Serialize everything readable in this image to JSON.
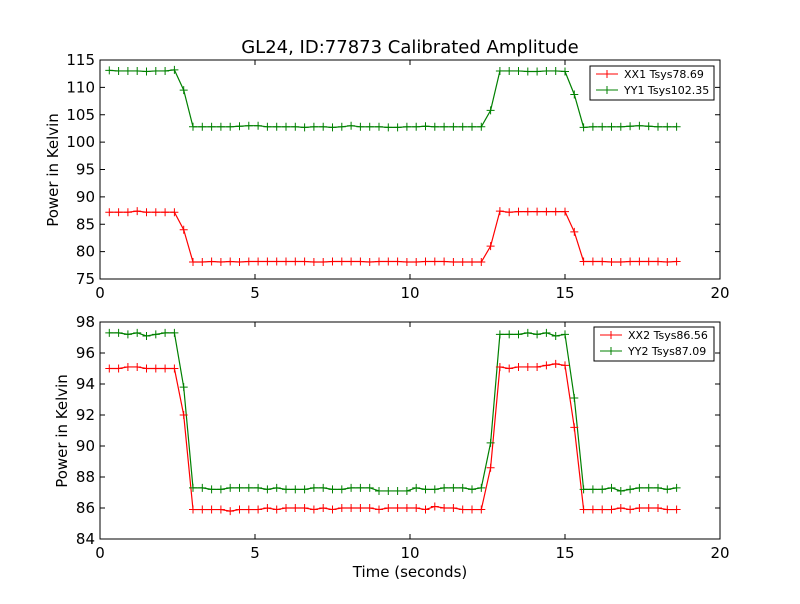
{
  "title": "GL24, ID:77873 Calibrated Amplitude",
  "colors": {
    "xx": "#ff0000",
    "yy": "#008000",
    "axis": "#000000",
    "background": "#ffffff"
  },
  "chart_data": [
    {
      "type": "line",
      "title": "GL24, ID:77873 Calibrated Amplitude",
      "xlabel": "",
      "ylabel": "Power in Kelvin",
      "xlim": [
        0,
        20
      ],
      "ylim": [
        75,
        115
      ],
      "xticks": [
        "0",
        "5",
        "10",
        "15",
        "20"
      ],
      "yticks": [
        "75",
        "80",
        "85",
        "90",
        "95",
        "100",
        "105",
        "110",
        "115"
      ],
      "grid": false,
      "legend_position": "top-right",
      "x": [
        0.3,
        0.6,
        0.9,
        1.2,
        1.5,
        1.8,
        2.1,
        2.4,
        2.7,
        3.0,
        3.3,
        3.6,
        3.9,
        4.2,
        4.5,
        4.8,
        5.1,
        5.4,
        5.7,
        6.0,
        6.3,
        6.6,
        6.9,
        7.2,
        7.5,
        7.8,
        8.1,
        8.4,
        8.7,
        9.0,
        9.3,
        9.6,
        9.9,
        10.2,
        10.5,
        10.8,
        11.1,
        11.4,
        11.7,
        12.0,
        12.3,
        12.6,
        12.9,
        13.2,
        13.5,
        13.8,
        14.1,
        14.4,
        14.7,
        15.0,
        15.3,
        15.6,
        15.9,
        16.2,
        16.5,
        16.8,
        17.1,
        17.4,
        17.7,
        18.0,
        18.3,
        18.6
      ],
      "series": [
        {
          "name": "XX1 Tsys78.69",
          "color": "#ff0000",
          "values": [
            87.2,
            87.2,
            87.2,
            87.4,
            87.2,
            87.2,
            87.2,
            87.2,
            84.0,
            78.1,
            78.1,
            78.2,
            78.1,
            78.2,
            78.1,
            78.2,
            78.2,
            78.2,
            78.2,
            78.2,
            78.2,
            78.2,
            78.1,
            78.1,
            78.2,
            78.2,
            78.2,
            78.2,
            78.1,
            78.2,
            78.2,
            78.2,
            78.1,
            78.1,
            78.2,
            78.2,
            78.2,
            78.1,
            78.1,
            78.1,
            78.1,
            81.0,
            87.4,
            87.2,
            87.3,
            87.3,
            87.3,
            87.3,
            87.3,
            87.3,
            83.6,
            78.2,
            78.2,
            78.2,
            78.1,
            78.1,
            78.2,
            78.2,
            78.2,
            78.2,
            78.1,
            78.2
          ]
        },
        {
          "name": "YY1 Tsys102.35",
          "color": "#008000",
          "values": [
            113.1,
            113.0,
            113.0,
            113.0,
            112.9,
            113.0,
            113.0,
            113.2,
            109.5,
            102.8,
            102.8,
            102.8,
            102.8,
            102.8,
            102.9,
            103.0,
            103.0,
            102.8,
            102.8,
            102.8,
            102.8,
            102.7,
            102.8,
            102.8,
            102.7,
            102.8,
            103.0,
            102.8,
            102.8,
            102.8,
            102.7,
            102.7,
            102.8,
            102.8,
            102.9,
            102.8,
            102.8,
            102.8,
            102.8,
            102.8,
            102.8,
            105.8,
            113.0,
            113.0,
            113.0,
            112.9,
            112.9,
            113.0,
            113.0,
            112.9,
            108.7,
            102.7,
            102.8,
            102.8,
            102.8,
            102.8,
            102.9,
            103.0,
            102.9,
            102.8,
            102.8,
            102.8
          ]
        }
      ]
    },
    {
      "type": "line",
      "title": "",
      "xlabel": "Time (seconds)",
      "ylabel": "Power in Kelvin",
      "xlim": [
        0,
        20
      ],
      "ylim": [
        84,
        98
      ],
      "xticks": [
        "0",
        "5",
        "10",
        "15",
        "20"
      ],
      "yticks": [
        "84",
        "86",
        "88",
        "90",
        "92",
        "94",
        "96",
        "98"
      ],
      "grid": false,
      "legend_position": "top-right",
      "x": [
        0.3,
        0.6,
        0.9,
        1.2,
        1.5,
        1.8,
        2.1,
        2.4,
        2.7,
        3.0,
        3.3,
        3.6,
        3.9,
        4.2,
        4.5,
        4.8,
        5.1,
        5.4,
        5.7,
        6.0,
        6.3,
        6.6,
        6.9,
        7.2,
        7.5,
        7.8,
        8.1,
        8.4,
        8.7,
        9.0,
        9.3,
        9.6,
        9.9,
        10.2,
        10.5,
        10.8,
        11.1,
        11.4,
        11.7,
        12.0,
        12.3,
        12.6,
        12.9,
        13.2,
        13.5,
        13.8,
        14.1,
        14.4,
        14.7,
        15.0,
        15.3,
        15.6,
        15.9,
        16.2,
        16.5,
        16.8,
        17.1,
        17.4,
        17.7,
        18.0,
        18.3,
        18.6
      ],
      "series": [
        {
          "name": "XX2 Tsys86.56",
          "color": "#ff0000",
          "values": [
            95.0,
            95.0,
            95.1,
            95.1,
            95.0,
            95.0,
            95.0,
            95.0,
            92.0,
            85.9,
            85.9,
            85.9,
            85.9,
            85.8,
            85.9,
            85.9,
            85.9,
            86.0,
            85.9,
            86.0,
            86.0,
            86.0,
            85.9,
            86.0,
            85.9,
            86.0,
            86.0,
            86.0,
            86.0,
            85.9,
            86.0,
            86.0,
            86.0,
            86.0,
            85.9,
            86.1,
            86.0,
            86.0,
            85.9,
            85.9,
            85.9,
            88.6,
            95.1,
            95.0,
            95.1,
            95.1,
            95.1,
            95.2,
            95.3,
            95.2,
            91.2,
            85.9,
            85.9,
            85.9,
            85.9,
            86.0,
            85.9,
            86.0,
            86.0,
            86.0,
            85.9,
            85.9
          ]
        },
        {
          "name": "YY2 Tsys87.09",
          "color": "#008000",
          "values": [
            97.3,
            97.3,
            97.2,
            97.3,
            97.1,
            97.2,
            97.3,
            97.3,
            93.8,
            87.3,
            87.3,
            87.2,
            87.2,
            87.3,
            87.3,
            87.3,
            87.3,
            87.2,
            87.3,
            87.2,
            87.2,
            87.2,
            87.3,
            87.3,
            87.2,
            87.2,
            87.3,
            87.3,
            87.3,
            87.1,
            87.1,
            87.1,
            87.1,
            87.3,
            87.2,
            87.2,
            87.3,
            87.3,
            87.3,
            87.2,
            87.3,
            90.2,
            97.2,
            97.2,
            97.2,
            97.3,
            97.2,
            97.3,
            97.1,
            97.2,
            93.1,
            87.2,
            87.2,
            87.2,
            87.3,
            87.1,
            87.2,
            87.3,
            87.3,
            87.3,
            87.2,
            87.3
          ]
        }
      ]
    }
  ]
}
